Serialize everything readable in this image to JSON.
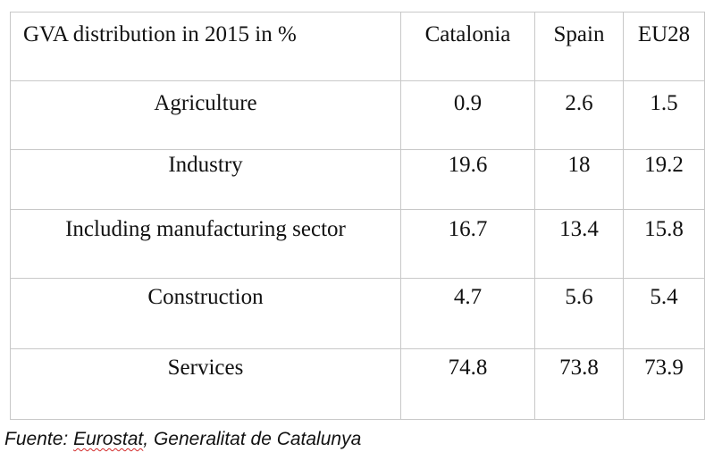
{
  "table": {
    "header": {
      "title": "GVA distribution in 2015 in %",
      "col1": "Catalonia",
      "col2": "Spain",
      "col3": "EU28"
    },
    "rows": [
      {
        "label": "Agriculture",
        "catalonia": "0.9",
        "spain": "2.6",
        "eu28": "1.5"
      },
      {
        "label": "Industry",
        "catalonia": "19.6",
        "spain": "18",
        "eu28": "19.2"
      },
      {
        "label": "Including manufacturing sector",
        "catalonia": "16.7",
        "spain": "13.4",
        "eu28": "15.8"
      },
      {
        "label": "Construction",
        "catalonia": "4.7",
        "spain": "5.6",
        "eu28": "5.4"
      },
      {
        "label": "Services",
        "catalonia": "74.8",
        "spain": "73.8",
        "eu28": "73.9"
      }
    ]
  },
  "source": {
    "prefix": "Fuente: ",
    "eurostat": "Eurostat",
    "rest": ", Generalitat de Catalunya"
  }
}
